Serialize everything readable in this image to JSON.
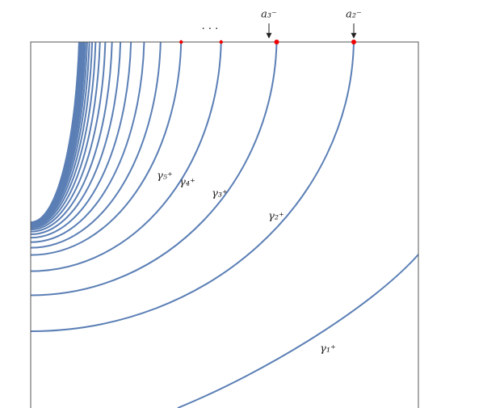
{
  "curve_labels": [
    "γ₁⁺",
    "γ₂⁺",
    "γ₃⁺",
    "γ₄⁺",
    "γ₅⁺"
  ],
  "point_labels": [
    "a₃⁻",
    "a₂⁻"
  ],
  "ellipsis": "· · ·"
}
